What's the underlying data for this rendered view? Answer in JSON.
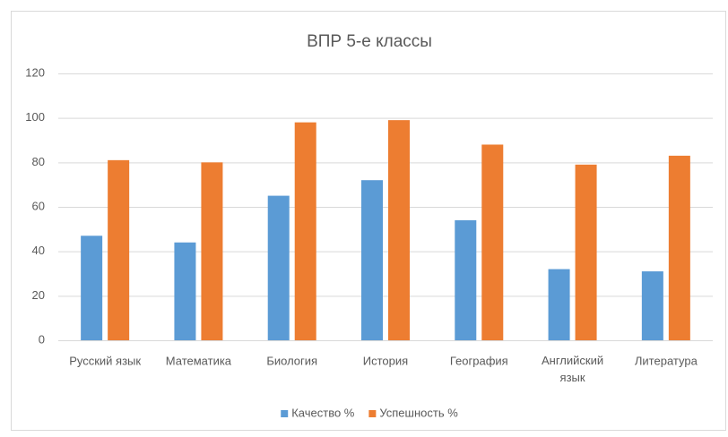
{
  "chart_data": {
    "type": "bar",
    "title": "ВПР 5-е классы",
    "categories": [
      "Русский язык",
      "Математика",
      "Биология",
      "История",
      "География",
      "Английский язык",
      "Литература"
    ],
    "series": [
      {
        "name": "Качество %",
        "color": "#5b9bd5",
        "values": [
          47,
          44,
          65,
          72,
          54,
          32,
          31
        ]
      },
      {
        "name": "Успешность %",
        "color": "#ed7d31",
        "values": [
          81,
          80,
          98,
          99,
          88,
          79,
          83
        ]
      }
    ],
    "ylim": [
      0,
      120
    ],
    "yticks": [
      0,
      20,
      40,
      60,
      80,
      100,
      120
    ],
    "grid": true,
    "legend": "bottom"
  }
}
